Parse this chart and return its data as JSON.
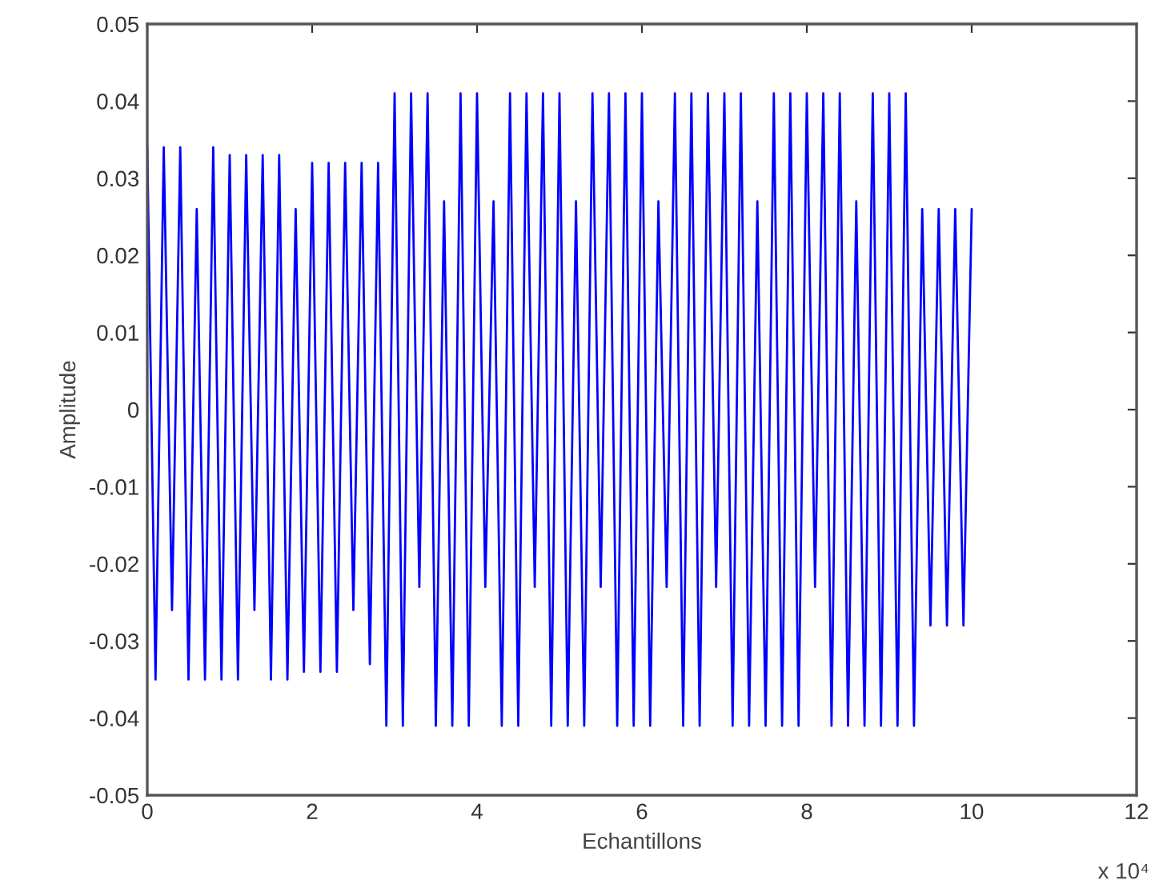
{
  "chart_data": {
    "type": "line",
    "xlabel": "Echantillons",
    "ylabel": "Amplitude",
    "annotations": [
      "x 10⁴"
    ],
    "x": [
      0,
      0.1,
      0.2,
      0.3,
      0.4,
      0.5,
      0.6,
      0.7,
      0.8,
      0.9,
      1,
      1.1,
      1.2,
      1.3,
      1.4,
      1.5,
      1.6,
      1.7,
      1.8,
      1.9,
      2,
      2.1,
      2.2,
      2.3,
      2.4,
      2.5,
      2.6,
      2.7,
      2.8,
      2.9,
      3,
      3.1,
      3.2,
      3.3,
      3.4,
      3.5,
      3.6,
      3.7,
      3.8,
      3.9,
      4,
      4.1,
      4.2,
      4.3,
      4.4,
      4.5,
      4.6,
      4.7,
      4.8,
      4.9,
      5,
      5.1,
      5.2,
      5.3,
      5.4,
      5.5,
      5.6,
      5.7,
      5.8,
      5.9,
      6,
      6.1,
      6.2,
      6.3,
      6.4,
      6.5,
      6.6,
      6.7,
      6.8,
      6.9,
      7,
      7.1,
      7.2,
      7.3,
      7.4,
      7.5,
      7.6,
      7.7,
      7.8,
      7.9,
      8,
      8.1,
      8.2,
      8.3,
      8.4,
      8.5,
      8.6,
      8.7,
      8.8,
      8.9,
      9,
      9.1,
      9.2,
      9.3,
      9.4,
      9.5,
      9.6,
      9.7,
      9.8,
      9.9,
      10
    ],
    "series": [
      {
        "color": "#0000ff",
        "values": [
          0.034,
          -0.035,
          0.034,
          -0.026,
          0.034,
          -0.035,
          0.026,
          -0.035,
          0.034,
          -0.035,
          0.033,
          -0.035,
          0.033,
          -0.026,
          0.033,
          -0.035,
          0.033,
          -0.035,
          0.026,
          -0.034,
          0.032,
          -0.034,
          0.032,
          -0.034,
          0.032,
          -0.026,
          0.032,
          -0.033,
          0.032,
          -0.041,
          0.041,
          -0.041,
          0.041,
          -0.023,
          0.041,
          -0.041,
          0.027,
          -0.041,
          0.041,
          -0.041,
          0.041,
          -0.023,
          0.027,
          -0.041,
          0.041,
          -0.041,
          0.041,
          -0.023,
          0.041,
          -0.041,
          0.041,
          -0.041,
          0.027,
          -0.041,
          0.041,
          -0.023,
          0.041,
          -0.041,
          0.041,
          -0.041,
          0.041,
          -0.041,
          0.027,
          -0.023,
          0.041,
          -0.041,
          0.041,
          -0.041,
          0.041,
          -0.023,
          0.041,
          -0.041,
          0.041,
          -0.041,
          0.027,
          -0.041,
          0.041,
          -0.041,
          0.041,
          -0.041,
          0.041,
          -0.023,
          0.041,
          -0.041,
          0.041,
          -0.041,
          0.027,
          -0.041,
          0.041,
          -0.041,
          0.041,
          -0.041,
          0.041,
          -0.041,
          0.026,
          -0.028,
          0.026,
          -0.028,
          0.026,
          -0.028,
          0.026
        ]
      }
    ],
    "xlim": [
      0,
      12
    ],
    "xticks": [
      0,
      2,
      4,
      6,
      8,
      10,
      12
    ],
    "ylim": [
      -0.05,
      0.05
    ],
    "yticks": [
      -0.05,
      -0.04,
      -0.03,
      -0.02,
      -0.01,
      0,
      0.01,
      0.02,
      0.03,
      0.04,
      0.05
    ],
    "grid": false,
    "line_style": "solid",
    "marker": "none"
  }
}
